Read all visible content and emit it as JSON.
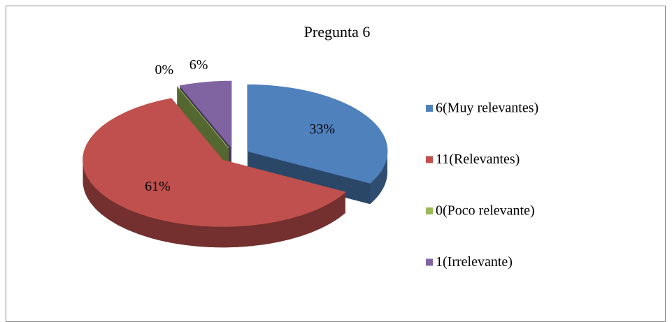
{
  "chart_data": {
    "type": "pie3d",
    "title": "Pregunta 6",
    "categories": [
      "6(Muy relevantes)",
      "11(Relevantes)",
      "0(Poco relevante)",
      "1(Irrelevante)"
    ],
    "values": [
      33,
      61,
      0,
      6
    ],
    "value_labels": [
      "33%",
      "61%",
      "0%",
      "6%"
    ],
    "colors": [
      "#4f81bd",
      "#c0504d",
      "#9bbb59",
      "#8064a2"
    ],
    "legend": "right"
  }
}
